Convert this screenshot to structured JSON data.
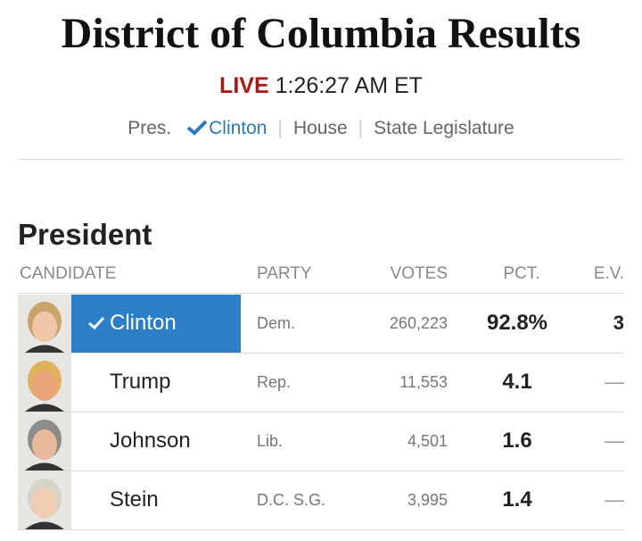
{
  "header": {
    "title": "District of Columbia Results",
    "live": "LIVE",
    "time": "1:26:27 AM ET"
  },
  "nav": [
    "Pres.",
    "Clinton",
    "House",
    "State Legislature"
  ],
  "section": {
    "title": "President",
    "columns": [
      "CANDIDATE",
      "PARTY",
      "VOTES",
      "PCT.",
      "E.V."
    ],
    "rows": [
      [
        "Clinton",
        "Dem.",
        "260,223",
        "92.8%",
        "3"
      ],
      [
        "Trump",
        "Rep.",
        "11,553",
        "4.1",
        "—"
      ],
      [
        "Johnson",
        "Lib.",
        "4,501",
        "1.6",
        "—"
      ],
      [
        "Stein",
        "D.C. S.G.",
        "3,995",
        "1.4",
        "—"
      ]
    ]
  }
}
